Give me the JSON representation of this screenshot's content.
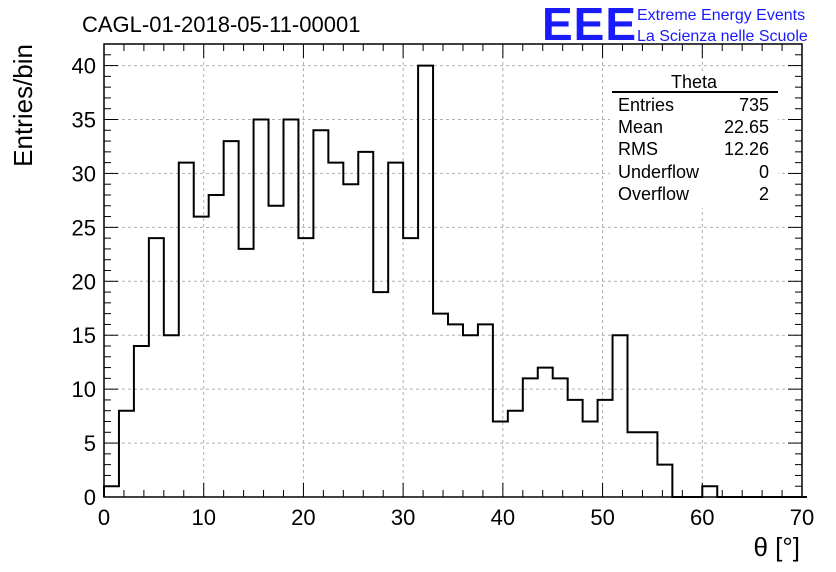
{
  "chart_data": {
    "type": "bar",
    "style": "step-histogram",
    "title": "CAGL-01-2018-05-11-00001",
    "xlabel": "θ [°]",
    "ylabel": "Entries/bin",
    "xlim": [
      0,
      70
    ],
    "ylim": [
      0,
      42
    ],
    "grid": true,
    "bin_width": 1.5,
    "x_ticks": [
      0,
      10,
      20,
      30,
      40,
      50,
      60,
      70
    ],
    "y_ticks": [
      0,
      5,
      10,
      15,
      20,
      25,
      30,
      35,
      40
    ],
    "values": [
      1,
      8,
      14,
      24,
      15,
      31,
      26,
      28,
      33,
      23,
      35,
      27,
      35,
      24,
      34,
      31,
      29,
      32,
      19,
      31,
      24,
      40,
      17,
      16,
      15,
      16,
      7,
      8,
      11,
      12,
      11,
      9,
      7,
      9,
      15,
      6,
      6,
      3,
      0,
      0,
      1,
      0,
      0,
      0,
      0,
      0,
      0
    ]
  },
  "stats_box": {
    "title": "Theta",
    "rows": [
      {
        "label": "Entries",
        "value": "735"
      },
      {
        "label": "Mean",
        "value": "22.65"
      },
      {
        "label": "RMS",
        "value": "12.26"
      },
      {
        "label": "Underflow",
        "value": "0"
      },
      {
        "label": "Overflow",
        "value": "2"
      }
    ]
  },
  "logo": {
    "letters": "EEE",
    "line1": "Extreme Energy Events",
    "line2": "La Scienza nelle Scuole"
  }
}
